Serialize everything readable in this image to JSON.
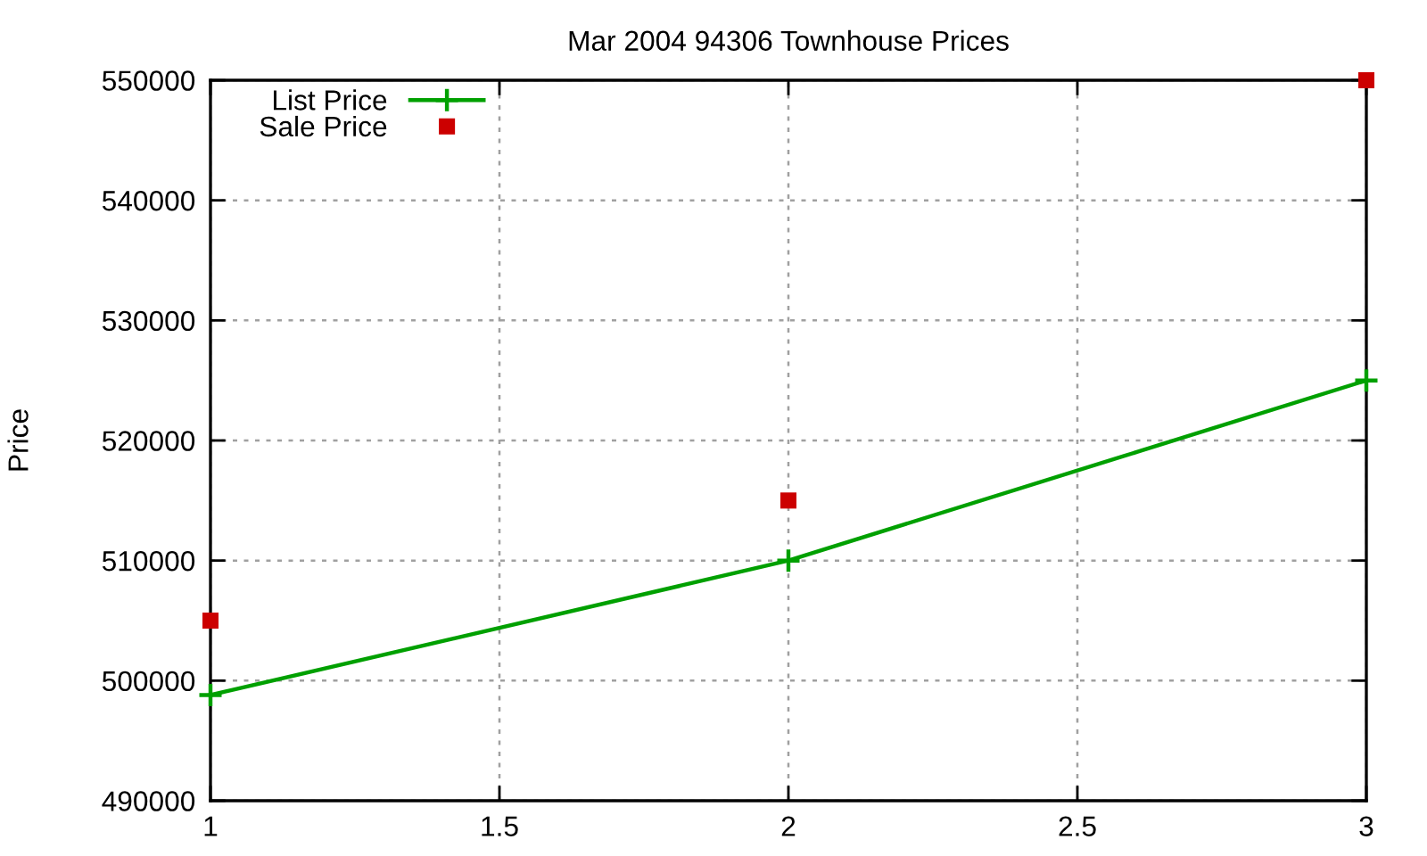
{
  "chart_data": {
    "type": "line",
    "title": "Mar 2004 94306 Townhouse Prices",
    "ylabel": "Price",
    "x": [
      1,
      2,
      3
    ],
    "series": [
      {
        "name": "List Price",
        "color": "#00a000",
        "marker": "cross",
        "values": [
          498800,
          510000,
          525000
        ]
      },
      {
        "name": "Sale Price",
        "type": "scatter",
        "color": "#cc0000",
        "marker": "square",
        "values": [
          505000,
          515000,
          550000
        ]
      }
    ],
    "xlim": [
      1,
      3
    ],
    "xticks": [
      1,
      1.5,
      2,
      2.5,
      3
    ],
    "ylim": [
      490000,
      550000
    ],
    "yticks": [
      490000,
      500000,
      510000,
      520000,
      530000,
      540000,
      550000
    ],
    "grid": true,
    "legend": "top left"
  }
}
